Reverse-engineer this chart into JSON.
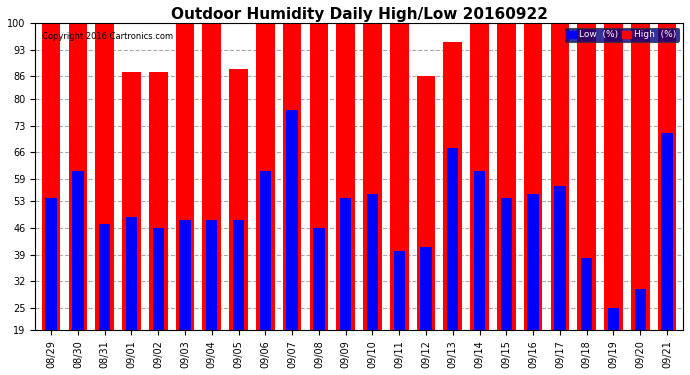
{
  "title": "Outdoor Humidity Daily High/Low 20160922",
  "copyright": "Copyright 2016 Cartronics.com",
  "dates": [
    "08/29",
    "08/30",
    "08/31",
    "09/01",
    "09/02",
    "09/03",
    "09/04",
    "09/05",
    "09/06",
    "09/07",
    "09/08",
    "09/09",
    "09/10",
    "09/11",
    "09/12",
    "09/13",
    "09/14",
    "09/15",
    "09/16",
    "09/17",
    "09/18",
    "09/19",
    "09/20",
    "09/21"
  ],
  "high": [
    100,
    100,
    100,
    87,
    87,
    100,
    100,
    88,
    100,
    100,
    100,
    100,
    100,
    100,
    86,
    95,
    100,
    100,
    100,
    100,
    100,
    100,
    100,
    100
  ],
  "low": [
    54,
    61,
    47,
    49,
    46,
    48,
    48,
    48,
    61,
    77,
    46,
    54,
    55,
    40,
    41,
    67,
    61,
    54,
    55,
    57,
    38,
    25,
    30,
    71
  ],
  "high_color": "#ff0000",
  "low_color": "#0000ff",
  "bg_color": "#ffffff",
  "grid_color": "#aaaaaa",
  "ylim_min": 19,
  "ylim_max": 100,
  "yticks": [
    19,
    25,
    32,
    39,
    46,
    53,
    59,
    66,
    73,
    80,
    86,
    93,
    100
  ],
  "bar_width": 0.7,
  "title_fontsize": 11,
  "tick_fontsize": 7,
  "legend_low_label": "Low  (%)",
  "legend_high_label": "High  (%)"
}
